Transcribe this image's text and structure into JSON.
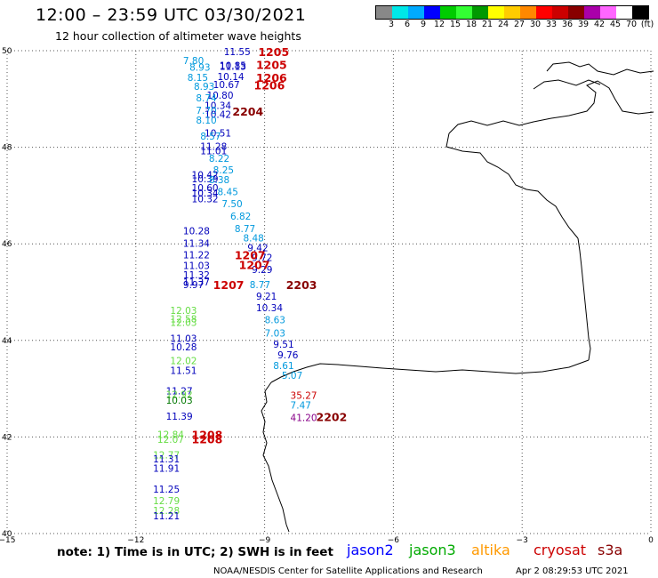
{
  "header": {
    "title": "12:00 – 23:59 UTC 03/30/2021",
    "subtitle": "12 hour collection of altimeter wave heights"
  },
  "legend": {
    "colors": [
      "#888888",
      "#00e8e8",
      "#00aaff",
      "#0000ff",
      "#00cc00",
      "#33ff33",
      "#009900",
      "#ffff00",
      "#ffcc00",
      "#ff8800",
      "#ff0000",
      "#cc0000",
      "#880000",
      "#aa00aa",
      "#ff66ff",
      "#ffffff",
      "#000000"
    ],
    "ticks": [
      "3",
      "6",
      "9",
      "12",
      "15",
      "18",
      "21",
      "24",
      "27",
      "30",
      "33",
      "36",
      "39",
      "42",
      "45",
      "70",
      "(ft)"
    ]
  },
  "axes": {
    "x_ticks": [
      "−15",
      "−12",
      "−9",
      "−6",
      "−3",
      "0"
    ],
    "y_ticks": [
      "50",
      "48",
      "46",
      "44",
      "42",
      "40"
    ]
  },
  "satellites": {
    "jason2": {
      "label": "jason2",
      "color": "#0000ff"
    },
    "jason3": {
      "label": "jason3",
      "color": "#00aa00"
    },
    "altika": {
      "label": "altika",
      "color": "#ff9900"
    },
    "cryosat": {
      "label": "cryosat",
      "color": "#cc0000"
    },
    "s3a": {
      "label": "s3a",
      "color": "#880000"
    }
  },
  "observations": [
    {
      "lon": -9.95,
      "lat": 49.98,
      "v": "11.55",
      "sat": "jason2"
    },
    {
      "lon": -10.9,
      "lat": 49.8,
      "v": "7.80",
      "sat": "altika_c"
    },
    {
      "lon": -10.75,
      "lat": 49.66,
      "v": "8.93",
      "sat": "altika_c"
    },
    {
      "lon": -10.05,
      "lat": 49.68,
      "v": "11.13",
      "sat": "jason2"
    },
    {
      "lon": -10.05,
      "lat": 49.7,
      "v": "10.85",
      "sat": "jason2"
    },
    {
      "lon": -10.8,
      "lat": 49.45,
      "v": "8.15",
      "sat": "altika_c"
    },
    {
      "lon": -10.1,
      "lat": 49.47,
      "v": "10.14",
      "sat": "jason2"
    },
    {
      "lon": -10.65,
      "lat": 49.26,
      "v": "8.93",
      "sat": "altika_c"
    },
    {
      "lon": -10.2,
      "lat": 49.3,
      "v": "10.67",
      "sat": "jason2"
    },
    {
      "lon": -10.35,
      "lat": 49.08,
      "v": "10.80",
      "sat": "jason2"
    },
    {
      "lon": -10.6,
      "lat": 49.02,
      "v": "8.74",
      "sat": "altika_c"
    },
    {
      "lon": -10.4,
      "lat": 48.87,
      "v": "10.34",
      "sat": "jason2"
    },
    {
      "lon": -10.6,
      "lat": 48.77,
      "v": "7.70",
      "sat": "altika_c"
    },
    {
      "lon": -10.4,
      "lat": 48.68,
      "v": "10.42",
      "sat": "jason2"
    },
    {
      "lon": -10.6,
      "lat": 48.56,
      "v": "8.10",
      "sat": "altika_c"
    },
    {
      "lon": -10.4,
      "lat": 48.3,
      "v": "10.51",
      "sat": "jason2"
    },
    {
      "lon": -10.5,
      "lat": 48.23,
      "v": "8.57",
      "sat": "altika_c"
    },
    {
      "lon": -10.5,
      "lat": 48.02,
      "v": "11.28",
      "sat": "jason2"
    },
    {
      "lon": -10.5,
      "lat": 47.93,
      "v": "11.01",
      "sat": "jason2"
    },
    {
      "lon": -10.3,
      "lat": 47.77,
      "v": "8.22",
      "sat": "altika_c"
    },
    {
      "lon": -10.2,
      "lat": 47.53,
      "v": "8.25",
      "sat": "altika_c"
    },
    {
      "lon": -10.7,
      "lat": 47.43,
      "v": "10.42",
      "sat": "jason2"
    },
    {
      "lon": -10.7,
      "lat": 47.35,
      "v": "10.39",
      "sat": "jason2"
    },
    {
      "lon": -10.3,
      "lat": 47.33,
      "v": "8.38",
      "sat": "altika_c"
    },
    {
      "lon": -10.7,
      "lat": 47.16,
      "v": "10.60",
      "sat": "jason2"
    },
    {
      "lon": -10.7,
      "lat": 47.05,
      "v": "10.34",
      "sat": "jason2"
    },
    {
      "lon": -10.1,
      "lat": 47.08,
      "v": "8.45",
      "sat": "altika_c"
    },
    {
      "lon": -10.7,
      "lat": 46.93,
      "v": "10.32",
      "sat": "jason2"
    },
    {
      "lon": -10.0,
      "lat": 46.83,
      "v": "7.50",
      "sat": "altika_c"
    },
    {
      "lon": -9.8,
      "lat": 46.57,
      "v": "6.82",
      "sat": "altika_c"
    },
    {
      "lon": -9.7,
      "lat": 46.32,
      "v": "8.77",
      "sat": "altika_c"
    },
    {
      "lon": -10.9,
      "lat": 46.27,
      "v": "10.28",
      "sat": "jason2"
    },
    {
      "lon": -9.5,
      "lat": 46.12,
      "v": "8.48",
      "sat": "altika_c"
    },
    {
      "lon": -10.9,
      "lat": 46.01,
      "v": "11.34",
      "sat": "jason2"
    },
    {
      "lon": -9.4,
      "lat": 45.92,
      "v": "9.42",
      "sat": "jason2"
    },
    {
      "lon": -10.9,
      "lat": 45.77,
      "v": "11.22",
      "sat": "jason2"
    },
    {
      "lon": -9.3,
      "lat": 45.72,
      "v": "9.72",
      "sat": "jason2"
    },
    {
      "lon": -10.9,
      "lat": 45.55,
      "v": "11.03",
      "sat": "jason2"
    },
    {
      "lon": -9.3,
      "lat": 45.47,
      "v": "9.29",
      "sat": "jason2"
    },
    {
      "lon": -10.9,
      "lat": 45.36,
      "v": "11.32",
      "sat": "jason2"
    },
    {
      "lon": -10.9,
      "lat": 45.21,
      "v": "11.37",
      "sat": "jason2"
    },
    {
      "lon": -10.9,
      "lat": 45.16,
      "v": "9.97",
      "sat": "jason2"
    },
    {
      "lon": -9.35,
      "lat": 45.16,
      "v": "8.77",
      "sat": "altika_c"
    },
    {
      "lon": -9.2,
      "lat": 44.92,
      "v": "9.21",
      "sat": "jason2"
    },
    {
      "lon": -9.2,
      "lat": 44.68,
      "v": "10.34",
      "sat": "jason2"
    },
    {
      "lon": -11.2,
      "lat": 44.62,
      "v": "12.03",
      "sat": "jason3_l"
    },
    {
      "lon": -11.2,
      "lat": 44.45,
      "v": "12.58",
      "sat": "jason3_l"
    },
    {
      "lon": -11.2,
      "lat": 44.37,
      "v": "12.03",
      "sat": "jason3_l"
    },
    {
      "lon": -9.0,
      "lat": 44.43,
      "v": "8.63",
      "sat": "altika_c"
    },
    {
      "lon": -9.0,
      "lat": 44.15,
      "v": "7.03",
      "sat": "altika_c"
    },
    {
      "lon": -11.2,
      "lat": 44.04,
      "v": "11.03",
      "sat": "jason2"
    },
    {
      "lon": -11.2,
      "lat": 43.87,
      "v": "10.28",
      "sat": "jason2"
    },
    {
      "lon": -8.8,
      "lat": 43.92,
      "v": "9.51",
      "sat": "jason2"
    },
    {
      "lon": -8.7,
      "lat": 43.7,
      "v": "9.76",
      "sat": "jason2"
    },
    {
      "lon": -11.2,
      "lat": 43.58,
      "v": "12.02",
      "sat": "jason3_l"
    },
    {
      "lon": -8.8,
      "lat": 43.48,
      "v": "8.61",
      "sat": "altika_c"
    },
    {
      "lon": -11.2,
      "lat": 43.38,
      "v": "11.51",
      "sat": "jason2"
    },
    {
      "lon": -8.6,
      "lat": 43.28,
      "v": "5.07",
      "sat": "altika_c"
    },
    {
      "lon": -11.3,
      "lat": 42.96,
      "v": "11.27",
      "sat": "jason2"
    },
    {
      "lon": -11.3,
      "lat": 42.88,
      "v": "12.92",
      "sat": "jason3_l"
    },
    {
      "lon": -11.3,
      "lat": 42.76,
      "v": "10.03",
      "sat": "jason3"
    },
    {
      "lon": -8.4,
      "lat": 42.86,
      "v": "35.27",
      "sat": "cryosat"
    },
    {
      "lon": -8.4,
      "lat": 42.66,
      "v": "7.47",
      "sat": "altika_c"
    },
    {
      "lon": -11.3,
      "lat": 42.43,
      "v": "11.39",
      "sat": "jason2"
    },
    {
      "lon": -8.4,
      "lat": 42.4,
      "v": "41.20",
      "sat": "purple"
    },
    {
      "lon": -11.5,
      "lat": 42.05,
      "v": "12.84",
      "sat": "jason3_l"
    },
    {
      "lon": -11.5,
      "lat": 41.95,
      "v": "12.07",
      "sat": "jason3_l"
    },
    {
      "lon": -11.6,
      "lat": 41.63,
      "v": "12.77",
      "sat": "jason3_l"
    },
    {
      "lon": -11.6,
      "lat": 41.55,
      "v": "11.31",
      "sat": "jason2"
    },
    {
      "lon": -11.6,
      "lat": 41.35,
      "v": "11.91",
      "sat": "jason2"
    },
    {
      "lon": -11.6,
      "lat": 40.92,
      "v": "11.25",
      "sat": "jason2"
    },
    {
      "lon": -11.6,
      "lat": 40.68,
      "v": "12.79",
      "sat": "jason3_l"
    },
    {
      "lon": -11.6,
      "lat": 40.48,
      "v": "12.28",
      "sat": "jason3_l"
    },
    {
      "lon": -11.6,
      "lat": 40.37,
      "v": "11.21",
      "sat": "jason2"
    }
  ],
  "passes": [
    {
      "lon": -9.15,
      "lat": 49.98,
      "t": "1205",
      "sat": "cryosat"
    },
    {
      "lon": -9.2,
      "lat": 49.71,
      "t": "1205",
      "sat": "cryosat"
    },
    {
      "lon": -9.2,
      "lat": 49.45,
      "t": "1206",
      "sat": "cryosat"
    },
    {
      "lon": -9.25,
      "lat": 49.29,
      "t": "1206",
      "sat": "cryosat"
    },
    {
      "lon": -9.75,
      "lat": 48.75,
      "t": "2204",
      "sat": "s3a"
    },
    {
      "lon": -9.7,
      "lat": 45.77,
      "t": "1207",
      "sat": "cryosat"
    },
    {
      "lon": -9.6,
      "lat": 45.57,
      "t": "1207",
      "sat": "cryosat"
    },
    {
      "lon": -10.2,
      "lat": 45.16,
      "t": "1207",
      "sat": "cryosat"
    },
    {
      "lon": -8.5,
      "lat": 45.16,
      "t": "2203",
      "sat": "s3a"
    },
    {
      "lon": -7.8,
      "lat": 42.42,
      "t": "2202",
      "sat": "s3a"
    },
    {
      "lon": -10.7,
      "lat": 42.05,
      "t": "1208",
      "sat": "cryosat"
    },
    {
      "lon": -10.7,
      "lat": 41.96,
      "t": "1208",
      "sat": "cryosat"
    }
  ],
  "label_colors": {
    "jason2": "#0000bb",
    "altika_c": "#0099dd",
    "jason3_l": "#66dd44",
    "jason3": "#007700",
    "cryosat": "#cc0000",
    "s3a": "#880000",
    "purple": "#880088"
  },
  "footer": {
    "note": "note: 1) Time is in UTC; 2) SWH is in feet",
    "credit": "NOAA/NESDIS Center for Satellite Applications and Research",
    "timestamp": "Apr  2 08:29:53 UTC 2021"
  }
}
